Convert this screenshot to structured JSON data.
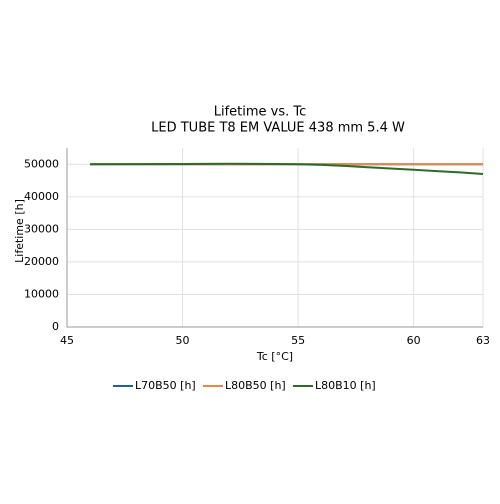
{
  "chart_data": {
    "type": "line",
    "title": "Lifetime vs. Tc",
    "subtitle": "LED TUBE T8 EM VALUE 438 mm 5.4 W",
    "x_label": "Tc [°C]",
    "y_label": "Lifetime [h]",
    "x": [
      46,
      48,
      50,
      52,
      54,
      55,
      56,
      57,
      58,
      59,
      60,
      61,
      62,
      63
    ],
    "series": [
      {
        "name": "L70B50 [h]",
        "color": "#1f5fa0",
        "values": [
          50000,
          50000,
          50000,
          50000,
          50000,
          50000,
          50000,
          50000,
          50000,
          50000,
          50000,
          50000,
          50000,
          50000
        ]
      },
      {
        "name": "L80B50 [h]",
        "color": "#e8864a",
        "values": [
          50000,
          50000,
          50000,
          50000,
          50000,
          50000,
          50000,
          50000,
          50000,
          50000,
          50000,
          50000,
          50000,
          50000
        ]
      },
      {
        "name": "L80B10 [h]",
        "color": "#2e6b2a",
        "values": [
          50000,
          50050,
          50100,
          50150,
          50100,
          50000,
          49800,
          49500,
          49100,
          48700,
          48300,
          47900,
          47500,
          47000
        ]
      }
    ],
    "xlim": [
      45,
      63
    ],
    "xticks": [
      45,
      50,
      55,
      60,
      63
    ],
    "ylim": [
      0,
      55000
    ],
    "yticks": [
      0,
      10000,
      20000,
      30000,
      40000,
      50000
    ],
    "grid": true,
    "legend": "bottom"
  }
}
